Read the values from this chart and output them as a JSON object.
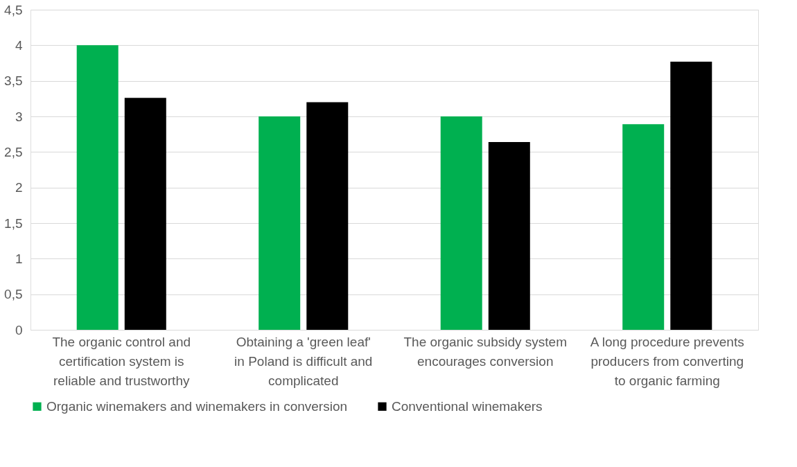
{
  "chart_data": {
    "type": "bar",
    "categories": [
      "The organic control and certification system is reliable and trustworthy",
      "Obtaining a 'green leaf' in Poland is difficult and complicated",
      "The organic subsidy system encourages conversion",
      "A long procedure prevents producers from converting to organic farming"
    ],
    "series": [
      {
        "name": "Organic winemakers and winemakers in conversion",
        "color": "#00b050",
        "values": [
          4.0,
          3.0,
          3.0,
          2.89
        ]
      },
      {
        "name": "Conventional winemakers",
        "color": "#000000",
        "values": [
          3.26,
          3.2,
          2.64,
          3.77
        ]
      }
    ],
    "ylim": [
      0,
      4.5
    ],
    "yticks": [
      0,
      {
        "value": 0.5,
        "label": "0,5"
      },
      1,
      {
        "value": 1.5,
        "label": "1,5"
      },
      2,
      {
        "value": 2.5,
        "label": "2,5"
      },
      3,
      {
        "value": 3.5,
        "label": "3,5"
      },
      4,
      {
        "value": 4.5,
        "label": "4,5"
      }
    ],
    "grid": "y",
    "legend": "bottom"
  }
}
